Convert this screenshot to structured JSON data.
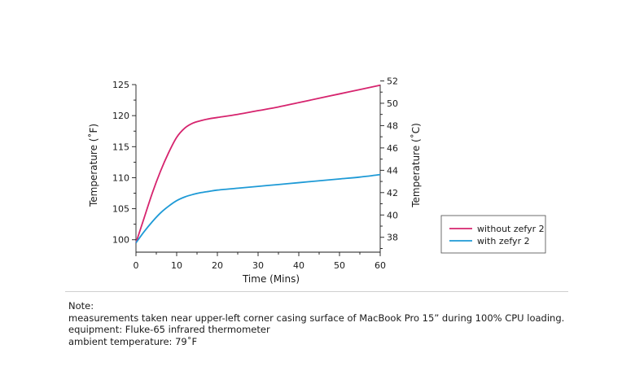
{
  "chart_data": {
    "type": "line",
    "xlabel": "Time (Mins)",
    "ylabel_left": "Temperature (˚F)",
    "ylabel_right": "Temperature (˚C)",
    "xlim": [
      0,
      60
    ],
    "ylim_left": [
      98,
      125
    ],
    "ylim_right": [
      36.67,
      51.67
    ],
    "x_ticks": [
      "0",
      "10",
      "20",
      "30",
      "40",
      "50",
      "60"
    ],
    "y_left_ticks": [
      "100",
      "105",
      "110",
      "115",
      "120",
      "125"
    ],
    "y_right_ticks": [
      "38",
      "40",
      "42",
      "44",
      "46",
      "48",
      "50",
      "52"
    ],
    "grid": false,
    "legend_position": "lower-right",
    "series": [
      {
        "name": "without zefyr 2",
        "color": "#d6246e",
        "x": [
          0,
          2,
          4,
          6,
          8,
          10,
          12,
          14,
          16,
          18,
          20,
          25,
          30,
          35,
          40,
          45,
          50,
          55,
          60
        ],
        "y": [
          99.5,
          103.5,
          107.5,
          111.0,
          114.0,
          116.5,
          118.0,
          118.8,
          119.2,
          119.5,
          119.7,
          120.2,
          120.8,
          121.4,
          122.1,
          122.8,
          123.5,
          124.2,
          124.9
        ]
      },
      {
        "name": "with zefyr 2",
        "color": "#1e9ad6",
        "x": [
          0,
          2,
          4,
          6,
          8,
          10,
          12,
          14,
          16,
          18,
          20,
          25,
          30,
          35,
          40,
          45,
          50,
          55,
          60
        ],
        "y": [
          99.5,
          101.3,
          102.9,
          104.3,
          105.4,
          106.3,
          106.9,
          107.3,
          107.6,
          107.8,
          108.0,
          108.3,
          108.6,
          108.9,
          109.2,
          109.5,
          109.8,
          110.1,
          110.5
        ]
      }
    ]
  },
  "notes": {
    "heading": "Note:",
    "line1": "measurements taken near upper-left corner casing surface of MacBook Pro 15” during 100% CPU loading.",
    "line2": "equipment: Fluke-65 infrared thermometer",
    "line3": "ambient temperature: 79˚F"
  }
}
